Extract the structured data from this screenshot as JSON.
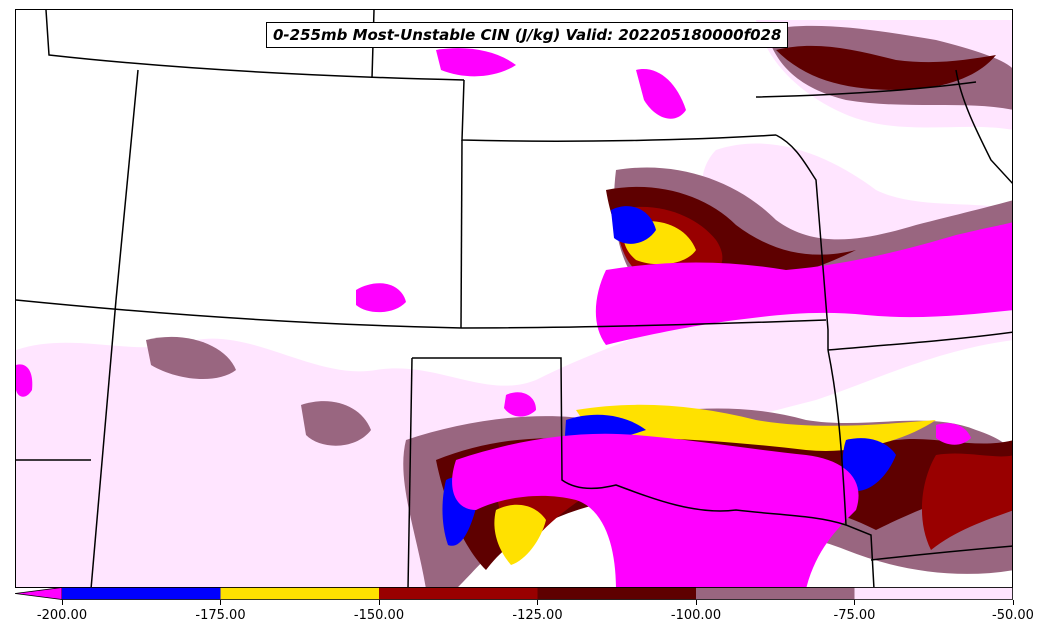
{
  "title": "0-255mb Most-Unstable CIN (J/kg) Valid: 202205180000f028",
  "colorbar": {
    "ticks": [
      "-200.00",
      "-175.00",
      "-150.00",
      "-125.00",
      "-100.00",
      "-75.00",
      "-50.00"
    ],
    "bins": [
      {
        "from": -200,
        "to": -175,
        "color": "#0000ff"
      },
      {
        "from": -175,
        "to": -150,
        "color": "#ffe100"
      },
      {
        "from": -150,
        "to": -125,
        "color": "#990000"
      },
      {
        "from": -125,
        "to": -100,
        "color": "#5e0000"
      },
      {
        "from": -100,
        "to": -75,
        "color": "#996680"
      },
      {
        "from": -75,
        "to": -50,
        "color": "#ffe5ff"
      }
    ],
    "extend_min_color": "#ff00ff"
  },
  "colors": {
    "magenta": "#ff00ff",
    "blue": "#0000ff",
    "yellow": "#ffe100",
    "red": "#990000",
    "darkred": "#5e0000",
    "mauve": "#996680",
    "pink": "#ffe5ff"
  }
}
